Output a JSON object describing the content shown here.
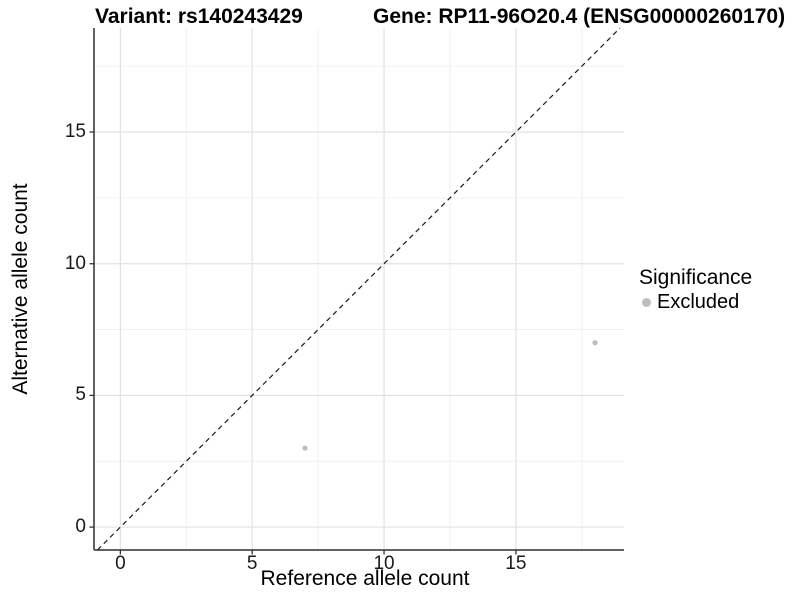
{
  "titles": {
    "variant": "Variant: rs140243429",
    "gene": "Gene: RP11-96O20.4 (ENSG00000260170)"
  },
  "axes": {
    "x_label": "Reference allele count",
    "y_label": "Alternative allele count"
  },
  "legend": {
    "title": "Significance",
    "items": [
      {
        "label": "Excluded",
        "color": "#bebebe"
      }
    ]
  },
  "chart_data": {
    "type": "scatter",
    "title_left": "Variant: rs140243429",
    "title_right": "Gene: RP11-96O20.4 (ENSG00000260170)",
    "xlabel": "Reference allele count",
    "ylabel": "Alternative allele count",
    "points": [
      {
        "x": 7,
        "y": 3,
        "significance": "Excluded"
      },
      {
        "x": 18,
        "y": 7,
        "significance": "Excluded"
      }
    ],
    "point_color": "#bebebe",
    "point_radius": 2.6,
    "xlim": [
      -1.0,
      19.1
    ],
    "ylim": [
      -0.87,
      18.95
    ],
    "x_major_ticks": [
      0,
      5,
      10,
      15
    ],
    "y_major_ticks": [
      0,
      5,
      10,
      15
    ],
    "x_minor_ticks": [
      2.5,
      7.5,
      12.5,
      17.5
    ],
    "y_minor_ticks": [
      2.5,
      7.5,
      12.5,
      17.5
    ],
    "reference_line": {
      "type": "identity y=x",
      "style": "dashed",
      "color": "#1a1a1a"
    },
    "grid": true,
    "legend_position": "right",
    "legend_title": "Significance",
    "legend_entries": [
      "Excluded"
    ],
    "colors": {
      "major_grid": "#e2e2e2",
      "minor_grid": "#f0f0f0",
      "axis_line": "#2f2f2f",
      "tick_mark": "#333333"
    }
  }
}
